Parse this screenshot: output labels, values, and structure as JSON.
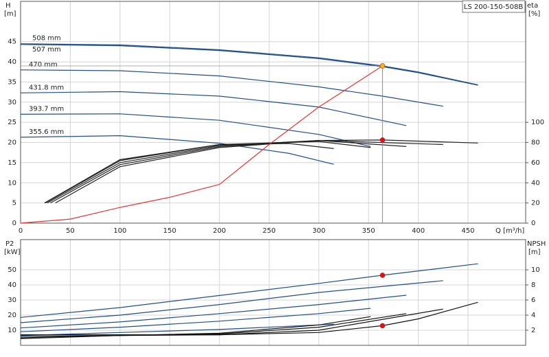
{
  "chart_data": [
    {
      "type": "line",
      "title": "LS 200-150-508B",
      "y_label": "H",
      "y_unit": "[m]",
      "y2_label": "eta",
      "y2_unit": "[%]",
      "x_label": "Q [m³/h]",
      "xlim": [
        0,
        508
      ],
      "xticks": [
        0,
        50,
        100,
        150,
        200,
        250,
        300,
        350,
        400,
        450
      ],
      "ylim": [
        0,
        55
      ],
      "yticks": [
        0,
        5,
        10,
        15,
        20,
        25,
        30,
        35,
        40,
        45
      ],
      "y2lim": [
        0,
        220
      ],
      "y2ticks": [
        0,
        20,
        40,
        60,
        80,
        100
      ],
      "grid": true,
      "guide_line": true,
      "series": [
        {
          "name": "508 mm",
          "color": "#1f4e8c",
          "x": [
            0,
            100,
            200,
            300,
            364,
            400,
            460
          ],
          "values": [
            44.5,
            44.2,
            43,
            41,
            39,
            37.5,
            34.3
          ]
        },
        {
          "name": "507 mm",
          "color": "#1f4e8c",
          "x": [
            0,
            100,
            200,
            300,
            364,
            400,
            460
          ],
          "values": [
            44.3,
            44.0,
            42.8,
            40.8,
            38.8,
            37.3,
            34.2
          ]
        },
        {
          "name": "470 mm",
          "color": "#1f4e8c",
          "x": [
            0,
            100,
            200,
            300,
            364,
            425
          ],
          "values": [
            38,
            37.8,
            36.5,
            33.8,
            31.5,
            29
          ]
        },
        {
          "name": "431.8 mm",
          "color": "#1f4e8c",
          "x": [
            0,
            100,
            200,
            300,
            388
          ],
          "values": [
            32.3,
            32.6,
            31.5,
            28.8,
            24.2
          ]
        },
        {
          "name": "393.7 mm",
          "color": "#1f4e8c",
          "x": [
            0,
            100,
            200,
            300,
            352
          ],
          "values": [
            27,
            27.1,
            25.5,
            22,
            19
          ]
        },
        {
          "name": "355.6 mm",
          "color": "#1f4e8c",
          "x": [
            0,
            100,
            200,
            270,
            315
          ],
          "values": [
            21.3,
            21.7,
            19.8,
            17.3,
            14.6
          ]
        },
        {
          "color": "#222222",
          "axis": "y2",
          "x": [
            35,
            100,
            200,
            300,
            364,
            460
          ],
          "values": [
            20,
            56,
            75,
            82,
            82.5,
            79.5
          ]
        },
        {
          "color": "#222222",
          "axis": "y2",
          "x": [
            30,
            100,
            200,
            300,
            425
          ],
          "values": [
            20,
            58,
            76,
            82,
            78
          ]
        },
        {
          "color": "#222222",
          "axis": "y2",
          "x": [
            27,
            100,
            200,
            300,
            388
          ],
          "values": [
            20,
            60,
            77,
            82,
            76
          ]
        },
        {
          "color": "#222222",
          "axis": "y2",
          "x": [
            25,
            100,
            200,
            300,
            352
          ],
          "values": [
            20,
            62,
            78,
            81,
            75
          ]
        },
        {
          "color": "#222222",
          "axis": "y2",
          "x": [
            24,
            100,
            200,
            270,
            315
          ],
          "values": [
            20,
            63,
            78,
            79,
            74
          ]
        },
        {
          "color": "#ee3333",
          "x": [
            0,
            50,
            100,
            150,
            200,
            250,
            300,
            364
          ],
          "values": [
            0,
            1,
            3.9,
            6.4,
            9.6,
            19.5,
            28.8,
            39
          ]
        }
      ],
      "markers": [
        {
          "x": 364,
          "y": 39,
          "color": "#f5b800"
        },
        {
          "x": 364,
          "y": 82.5,
          "axis": "y2",
          "color": "#e01010"
        }
      ]
    },
    {
      "type": "line",
      "y_label": "P2",
      "y_unit": "[kW]",
      "y2_label": "NPSH",
      "y2_unit": "[m]",
      "xlim": [
        0,
        508
      ],
      "xticks": [
        0,
        50,
        100,
        150,
        200,
        250,
        300,
        350,
        400,
        450
      ],
      "ylim": [
        0,
        70
      ],
      "yticks": [
        10,
        20,
        30,
        40,
        50
      ],
      "y2lim": [
        0,
        14
      ],
      "y2ticks": [
        2,
        4,
        6,
        8,
        10
      ],
      "grid": true,
      "series": [
        {
          "color": "#1f4e8c",
          "x": [
            0,
            100,
            200,
            300,
            364,
            460
          ],
          "values": [
            18.5,
            25,
            33,
            41,
            46.4,
            54
          ]
        },
        {
          "color": "#1f4e8c",
          "x": [
            0,
            100,
            200,
            300,
            425
          ],
          "values": [
            15,
            20,
            27,
            35,
            42.8
          ]
        },
        {
          "color": "#1f4e8c",
          "x": [
            0,
            100,
            200,
            300,
            388
          ],
          "values": [
            11.5,
            15.5,
            21,
            27,
            33.2
          ]
        },
        {
          "color": "#1f4e8c",
          "x": [
            0,
            100,
            200,
            300,
            352
          ],
          "values": [
            9,
            12,
            16,
            21,
            24.5
          ]
        },
        {
          "color": "#1f4e8c",
          "x": [
            0,
            100,
            200,
            315
          ],
          "values": [
            6.5,
            8.5,
            10.5,
            14
          ]
        },
        {
          "color": "#111111",
          "axis": "y2",
          "x": [
            0,
            100,
            200,
            300,
            364,
            400,
            460
          ],
          "values": [
            1.4,
            1.4,
            1.4,
            1.7,
            2.6,
            3.5,
            5.7
          ]
        },
        {
          "color": "#111111",
          "axis": "y2",
          "x": [
            0,
            100,
            200,
            300,
            425
          ],
          "values": [
            1.2,
            1.3,
            1.4,
            2.0,
            4.8
          ]
        },
        {
          "color": "#111111",
          "axis": "y2",
          "x": [
            0,
            100,
            200,
            300,
            388
          ],
          "values": [
            1.0,
            1.3,
            1.5,
            2.4,
            4.2
          ]
        },
        {
          "color": "#111111",
          "axis": "y2",
          "x": [
            0,
            100,
            200,
            300,
            352
          ],
          "values": [
            0.9,
            1.3,
            1.6,
            2.7,
            3.8
          ]
        }
      ],
      "markers": [
        {
          "x": 364,
          "y": 46.4,
          "color": "#e01010"
        },
        {
          "x": 364,
          "y": 2.6,
          "axis": "y2",
          "color": "#e01010"
        }
      ]
    }
  ]
}
